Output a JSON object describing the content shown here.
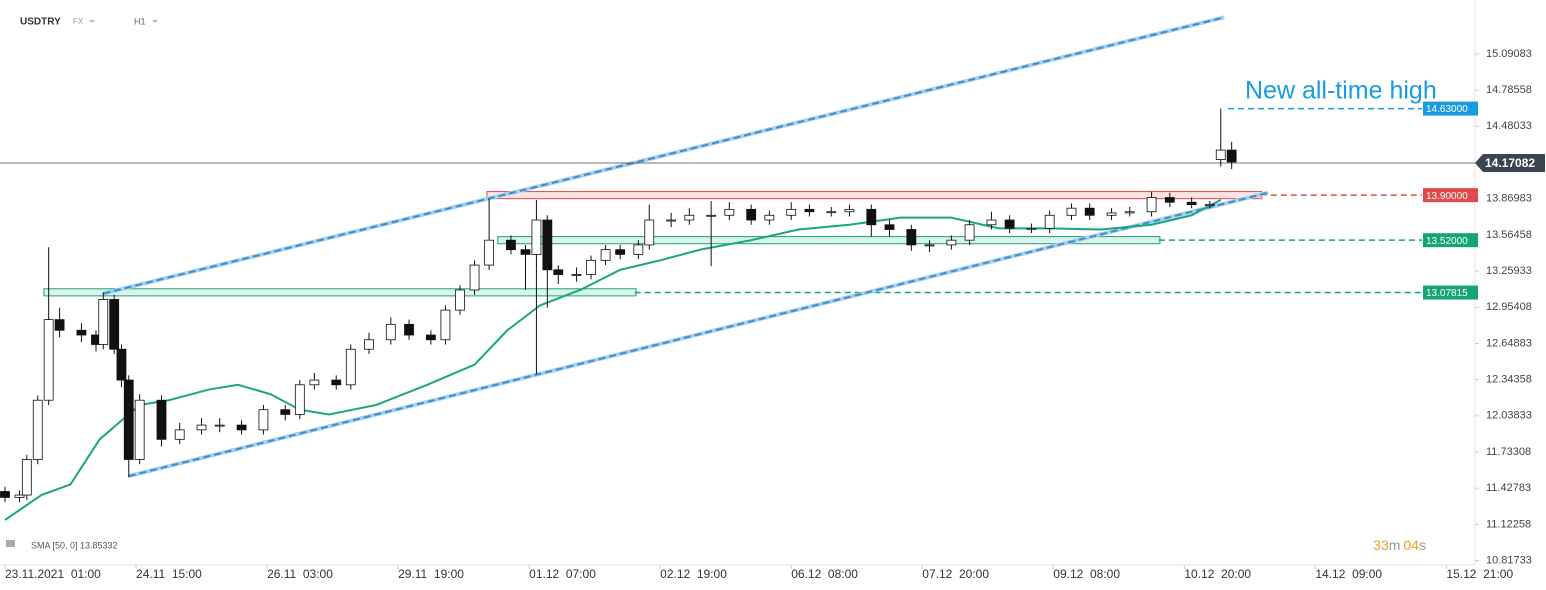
{
  "chart_data": {
    "type": "candlestick",
    "symbol": "USDTRY",
    "market": "FX",
    "timeframe": "H1",
    "indicator_label": "SMA [50, 0] 13.85332",
    "annotation": "New all-time high",
    "countdown": {
      "minutes": "33",
      "minutes_unit": "m",
      "seconds": "04",
      "seconds_unit": "s"
    },
    "xlim": [
      -1.37,
      403.85
    ],
    "ylim": [
      10.78,
      15.546
    ],
    "yticks": [
      15.09083,
      14.78558,
      14.48033,
      13.86983,
      13.56458,
      13.25933,
      12.95408,
      12.64883,
      12.34358,
      12.03833,
      11.73308,
      11.42783,
      11.12258,
      10.81733
    ],
    "xticks": [
      {
        "value": 0,
        "label": "23.11.2021  01:00"
      },
      {
        "value": 36,
        "label": "24.11  15:00"
      },
      {
        "value": 72,
        "label": "26.11  03:00"
      },
      {
        "value": 108,
        "label": "29.11  19:00"
      },
      {
        "value": 144,
        "label": "01.12  07:00"
      },
      {
        "value": 180,
        "label": "02.12  19:00"
      },
      {
        "value": 216,
        "label": "06.12  08:00"
      },
      {
        "value": 252,
        "label": "07.12  20:00"
      },
      {
        "value": 288,
        "label": "09.12  08:00"
      },
      {
        "value": 324,
        "label": "10.12  20:00"
      },
      {
        "value": 360,
        "label": "14.12  09:00"
      },
      {
        "value": 396,
        "label": "15.12  21:00"
      }
    ],
    "x": [
      0,
      4,
      6,
      9,
      12,
      15,
      21,
      25,
      27,
      30,
      32,
      34,
      37,
      43,
      48,
      54,
      59,
      65,
      71,
      77,
      81,
      85,
      91,
      95,
      100,
      106,
      111,
      117,
      121,
      125,
      129,
      133,
      139,
      143,
      146,
      149,
      152,
      157,
      161,
      165,
      169,
      174,
      177,
      183,
      188,
      194,
      199,
      205,
      210,
      216,
      221,
      227,
      232,
      238,
      243,
      249,
      254,
      260,
      265,
      271,
      276,
      282,
      287,
      293,
      298,
      304,
      309,
      315,
      320,
      326,
      331,
      334,
      337
    ],
    "open": [
      11.4,
      11.35,
      11.37,
      11.67,
      12.17,
      12.85,
      12.76,
      12.72,
      12.64,
      13.02,
      12.6,
      12.34,
      11.67,
      12.17,
      11.84,
      11.92,
      11.96,
      11.96,
      11.92,
      12.09,
      12.05,
      12.3,
      12.34,
      12.3,
      12.6,
      12.68,
      12.81,
      12.72,
      12.68,
      12.93,
      13.1,
      13.31,
      13.52,
      13.44,
      13.4,
      13.69,
      13.27,
      13.23,
      13.23,
      13.35,
      13.44,
      13.4,
      13.48,
      13.69,
      13.69,
      13.73,
      13.73,
      13.78,
      13.69,
      13.73,
      13.78,
      13.76,
      13.76,
      13.78,
      13.65,
      13.61,
      13.48,
      13.48,
      13.52,
      13.65,
      13.69,
      13.62,
      13.62,
      13.73,
      13.79,
      13.73,
      13.75,
      13.76,
      13.88,
      13.84,
      13.82,
      14.2,
      14.28
    ],
    "high": [
      11.44,
      11.41,
      11.71,
      12.21,
      13.46,
      12.95,
      12.82,
      12.76,
      13.08,
      13.06,
      12.64,
      12.38,
      12.22,
      12.21,
      11.98,
      12.02,
      12.02,
      12.0,
      12.13,
      12.13,
      12.34,
      12.4,
      12.38,
      12.64,
      12.74,
      12.87,
      12.85,
      12.76,
      12.97,
      13.14,
      13.35,
      13.87,
      13.56,
      13.48,
      13.86,
      13.73,
      13.31,
      13.29,
      13.39,
      13.48,
      13.48,
      13.52,
      13.82,
      13.75,
      13.79,
      13.85,
      13.84,
      13.82,
      13.77,
      13.84,
      13.82,
      13.8,
      13.82,
      13.82,
      13.69,
      13.65,
      13.52,
      13.56,
      13.69,
      13.76,
      13.73,
      13.66,
      13.77,
      13.83,
      13.83,
      13.79,
      13.8,
      13.93,
      13.92,
      13.88,
      13.85,
      14.63,
      14.35
    ],
    "low": [
      11.31,
      11.31,
      11.33,
      11.63,
      12.13,
      12.7,
      12.66,
      12.58,
      12.6,
      12.56,
      12.28,
      11.52,
      11.63,
      11.78,
      11.8,
      11.88,
      11.9,
      11.88,
      11.88,
      12.0,
      12.01,
      12.26,
      12.26,
      12.26,
      12.56,
      12.64,
      12.68,
      12.64,
      12.64,
      12.89,
      13.06,
      13.27,
      13.4,
      13.1,
      12.39,
      12.95,
      13.15,
      13.17,
      13.19,
      13.31,
      13.36,
      13.36,
      13.44,
      13.63,
      13.65,
      13.3,
      13.69,
      13.65,
      13.65,
      13.69,
      13.72,
      13.72,
      13.72,
      13.55,
      13.55,
      13.43,
      13.42,
      13.44,
      13.48,
      13.61,
      13.58,
      13.58,
      13.58,
      13.69,
      13.69,
      13.69,
      13.72,
      13.72,
      13.8,
      13.79,
      13.79,
      14.14,
      14.12
    ],
    "close": [
      11.35,
      11.37,
      11.67,
      12.17,
      12.85,
      12.76,
      12.72,
      12.64,
      13.02,
      12.6,
      12.34,
      11.67,
      12.17,
      11.84,
      11.92,
      11.96,
      11.96,
      11.92,
      12.09,
      12.05,
      12.3,
      12.34,
      12.3,
      12.6,
      12.68,
      12.81,
      12.72,
      12.68,
      12.93,
      13.1,
      13.31,
      13.52,
      13.44,
      13.4,
      13.69,
      13.27,
      13.23,
      13.23,
      13.35,
      13.44,
      13.4,
      13.48,
      13.69,
      13.69,
      13.73,
      13.73,
      13.78,
      13.69,
      13.73,
      13.78,
      13.76,
      13.76,
      13.78,
      13.65,
      13.61,
      13.48,
      13.48,
      13.52,
      13.65,
      13.69,
      13.62,
      13.62,
      13.73,
      13.79,
      13.73,
      13.75,
      13.76,
      13.88,
      13.84,
      13.82,
      13.82,
      14.28,
      14.18
    ],
    "sma": {
      "color": "#1ba67c",
      "x": [
        0,
        10,
        18,
        26,
        37,
        45,
        56,
        64,
        73,
        81,
        89,
        102,
        116,
        129,
        138,
        147,
        158,
        169,
        180,
        191,
        205,
        218,
        232,
        246,
        260,
        273,
        287,
        301,
        315,
        326,
        334
      ],
      "values": [
        11.16,
        11.37,
        11.46,
        11.84,
        12.13,
        12.17,
        12.26,
        12.3,
        12.22,
        12.09,
        12.05,
        12.13,
        12.3,
        12.47,
        12.76,
        12.97,
        13.1,
        13.27,
        13.35,
        13.44,
        13.52,
        13.61,
        13.65,
        13.71,
        13.71,
        13.62,
        13.62,
        13.61,
        13.65,
        13.73,
        13.86
      ]
    },
    "current_price": 14.17082,
    "levels": [
      {
        "value": 14.63,
        "label": "14.63000",
        "color": "#1a9be0",
        "x_start": 336
      },
      {
        "value": 13.9,
        "label": "13.90000",
        "color": "#e04a4a",
        "x_start": 345
      },
      {
        "value": 13.52,
        "label": "13.52000",
        "color": "#13a674",
        "x_start": 317
      },
      {
        "value": 13.07815,
        "label": "13.07815",
        "color": "#13a674",
        "x_start": 173
      }
    ],
    "zones": [
      {
        "x": [
          132.4,
          345.3
        ],
        "range": [
          13.87,
          13.93
        ],
        "color": "#e04a4a"
      },
      {
        "x": [
          135.4,
          317.3
        ],
        "range": [
          13.49,
          13.55
        ],
        "color": "#13a674"
      },
      {
        "x": [
          10.7,
          173.4
        ],
        "range": [
          13.05,
          13.11
        ],
        "color": "#13a674"
      }
    ],
    "trendlines": [
      {
        "x": [
          27,
          335
        ],
        "values": [
          13.07,
          15.4
        ]
      },
      {
        "x": [
          34,
          347
        ],
        "values": [
          11.53,
          13.92
        ]
      }
    ]
  }
}
